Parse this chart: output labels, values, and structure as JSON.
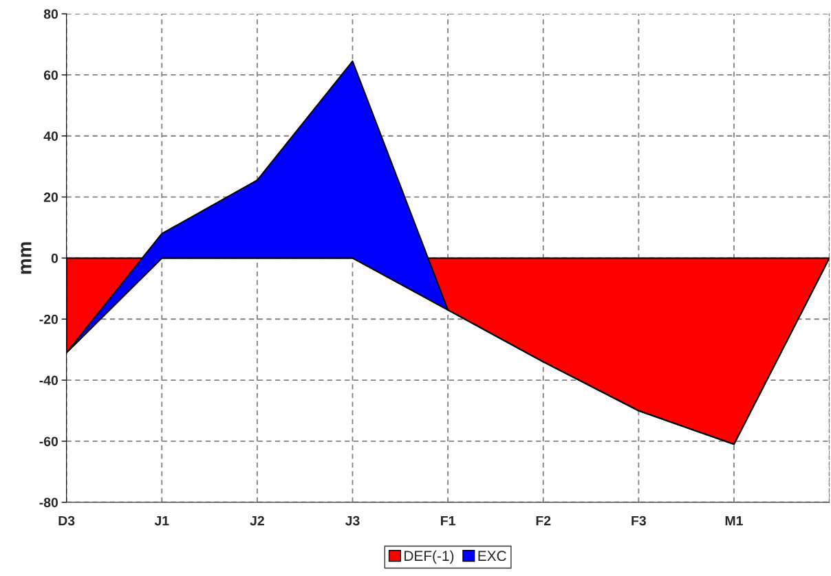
{
  "chart_data": {
    "type": "area",
    "ylabel": "mm",
    "stacked": true,
    "categories": [
      "D3",
      "J1",
      "J2",
      "J3",
      "F1",
      "F2",
      "F3",
      "M1",
      null
    ],
    "ylim": [
      -80,
      80
    ],
    "yticks": [
      -80,
      -60,
      -40,
      -20,
      0,
      20,
      40,
      60,
      80
    ],
    "grid": true,
    "legend": "bottom",
    "series": [
      {
        "name": "DEF(-1)",
        "color": "#ff0000",
        "values": [
          -31,
          0,
          0,
          0,
          -17,
          -34,
          -50,
          -61,
          0
        ]
      },
      {
        "name": "EXC",
        "color": "#0000ff",
        "values": [
          0,
          8,
          25.5,
          64.5,
          0,
          0,
          0,
          0,
          0
        ]
      }
    ]
  }
}
